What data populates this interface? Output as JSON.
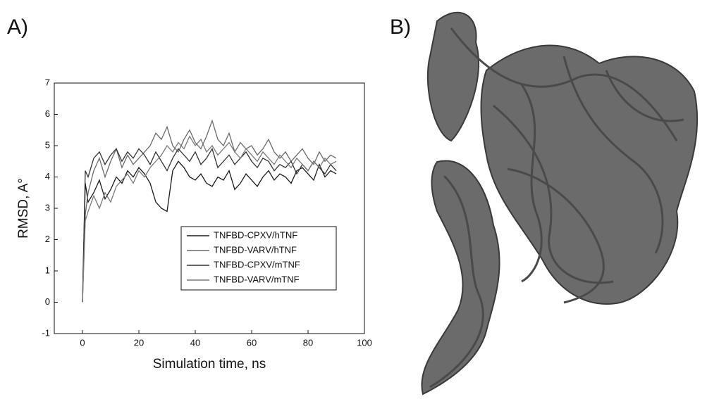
{
  "panel_labels": [
    "A)",
    "B)"
  ],
  "chart_data": {
    "type": "line",
    "xlabel": "Simulation time, ns",
    "ylabel": "RMSD, A°",
    "xlim": [
      -10,
      100
    ],
    "ylim": [
      -1,
      7
    ],
    "xticks": [
      0,
      20,
      40,
      60,
      80,
      100
    ],
    "yticks": [
      -1,
      0,
      1,
      2,
      3,
      4,
      5,
      6,
      7
    ],
    "legend": "lower right",
    "x": [
      0,
      1,
      2,
      4,
      6,
      8,
      10,
      12,
      14,
      16,
      18,
      20,
      22,
      24,
      26,
      28,
      30,
      32,
      34,
      36,
      38,
      40,
      42,
      44,
      46,
      48,
      50,
      52,
      54,
      56,
      58,
      60,
      62,
      64,
      66,
      68,
      70,
      72,
      74,
      76,
      78,
      80,
      82,
      84,
      86,
      88,
      90
    ],
    "series": [
      {
        "name": "TNFBD-CPXV/hTNF",
        "color": "#1a1a1a",
        "values": [
          0,
          3.8,
          3.2,
          3.5,
          3.9,
          3.3,
          3.6,
          4.0,
          3.8,
          4.2,
          4.0,
          4.3,
          4.1,
          3.8,
          3.2,
          3.0,
          2.9,
          4.2,
          4.5,
          4.3,
          4.0,
          3.9,
          4.1,
          3.8,
          3.7,
          4.0,
          3.9,
          4.2,
          3.6,
          3.8,
          4.1,
          3.9,
          3.7,
          4.0,
          4.2,
          3.9,
          4.1,
          4.0,
          3.8,
          4.2,
          4.3,
          4.1,
          3.9,
          4.4,
          4.0,
          4.2,
          4.1
        ]
      },
      {
        "name": "TNFBD-VARV/hTNF",
        "color": "#6a6a6a",
        "values": [
          0,
          2.8,
          3.5,
          4.2,
          4.6,
          4.0,
          4.5,
          4.9,
          4.3,
          4.7,
          4.4,
          4.6,
          4.8,
          5.0,
          5.4,
          5.2,
          5.6,
          5.0,
          4.8,
          5.2,
          5.5,
          5.1,
          4.9,
          5.3,
          5.8,
          5.2,
          5.0,
          5.4,
          4.8,
          5.1,
          4.9,
          5.0,
          4.7,
          4.9,
          5.2,
          4.8,
          4.6,
          4.8,
          4.5,
          4.7,
          4.9,
          4.6,
          4.4,
          4.8,
          4.5,
          4.7,
          4.6
        ]
      },
      {
        "name": "TNFBD-CPXV/mTNF",
        "color": "#333333",
        "values": [
          0,
          4.2,
          4.0,
          4.6,
          4.8,
          4.4,
          4.7,
          4.9,
          4.5,
          4.8,
          4.6,
          4.9,
          4.7,
          4.4,
          4.8,
          4.5,
          4.2,
          4.6,
          4.9,
          4.7,
          4.5,
          4.8,
          4.4,
          4.6,
          4.9,
          4.3,
          4.5,
          4.7,
          4.4,
          4.6,
          4.8,
          4.5,
          4.3,
          4.6,
          4.5,
          4.2,
          4.4,
          4.3,
          4.5,
          4.1,
          4.4,
          4.2,
          4.5,
          4.3,
          4.1,
          4.4,
          4.2
        ]
      },
      {
        "name": "TNFBD-VARV/mTNF",
        "color": "#7a7a7a",
        "values": [
          0,
          2.6,
          2.9,
          3.4,
          3.0,
          3.5,
          3.2,
          3.7,
          3.9,
          4.1,
          3.8,
          4.2,
          4.0,
          4.3,
          4.5,
          4.7,
          5.0,
          4.8,
          5.1,
          4.9,
          5.3,
          5.0,
          5.2,
          4.8,
          5.0,
          4.7,
          4.9,
          5.1,
          4.8,
          4.6,
          4.9,
          4.7,
          4.5,
          4.8,
          4.6,
          4.4,
          4.7,
          4.5,
          4.3,
          4.6,
          4.4,
          4.2,
          4.5,
          4.3,
          4.6,
          4.4,
          4.5
        ]
      }
    ]
  }
}
